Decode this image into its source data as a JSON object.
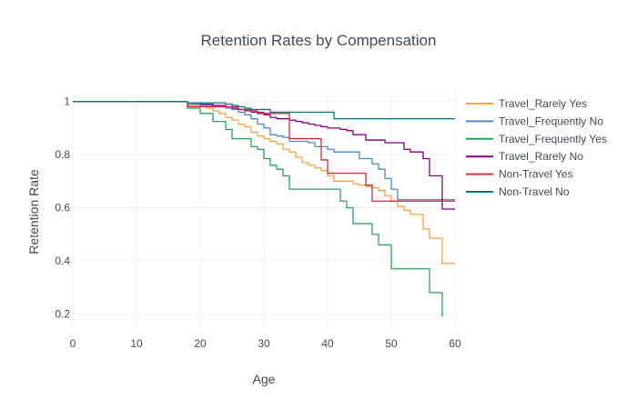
{
  "chart_data": {
    "type": "line",
    "title": "Retention Rates by Compensation",
    "xlabel": "Age",
    "ylabel": "Retention Rate",
    "xlim": [
      0,
      60
    ],
    "ylim": [
      0.15,
      1.04
    ],
    "x_ticks": [
      0,
      10,
      20,
      30,
      40,
      50,
      60
    ],
    "y_ticks": [
      0.2,
      0.4,
      0.6,
      0.8,
      1
    ],
    "y_tick_labels": [
      "0.2",
      "0.4",
      "0.6",
      "0.8",
      "1"
    ],
    "grid": true,
    "step": true,
    "legend_position": "right",
    "series": [
      {
        "name": "Travel_Rarely Yes",
        "color": "#f5a142",
        "x": [
          0,
          18,
          20,
          21,
          22,
          23,
          24,
          25,
          26,
          27,
          28,
          29,
          30,
          31,
          32,
          33,
          34,
          35,
          36,
          37,
          38,
          39,
          40,
          41,
          42,
          43,
          44,
          45,
          46,
          47,
          48,
          49,
          50,
          51,
          52,
          53,
          54,
          55,
          56,
          57,
          58,
          59,
          60
        ],
        "y": [
          1.0,
          0.985,
          0.98,
          0.975,
          0.965,
          0.955,
          0.94,
          0.93,
          0.915,
          0.905,
          0.885,
          0.87,
          0.86,
          0.85,
          0.84,
          0.82,
          0.81,
          0.79,
          0.77,
          0.76,
          0.75,
          0.74,
          0.72,
          0.7,
          0.7,
          0.7,
          0.69,
          0.685,
          0.68,
          0.675,
          0.665,
          0.645,
          0.625,
          0.605,
          0.59,
          0.575,
          0.575,
          0.52,
          0.485,
          0.485,
          0.39,
          0.39,
          0.39
        ]
      },
      {
        "name": "Travel_Frequently No",
        "color": "#4a89c8",
        "x": [
          0,
          18,
          20,
          22,
          24,
          25,
          26,
          27,
          28,
          29,
          30,
          31,
          32,
          33,
          34,
          35,
          36,
          37,
          38,
          39,
          40,
          41,
          42,
          43,
          44,
          45,
          46,
          47,
          48,
          49,
          50,
          51,
          52,
          53,
          54,
          55,
          56,
          57,
          58,
          59,
          60
        ],
        "y": [
          1.0,
          0.99,
          0.985,
          0.98,
          0.975,
          0.97,
          0.96,
          0.95,
          0.935,
          0.915,
          0.9,
          0.875,
          0.87,
          0.865,
          0.85,
          0.85,
          0.85,
          0.845,
          0.83,
          0.83,
          0.82,
          0.81,
          0.81,
          0.81,
          0.81,
          0.785,
          0.785,
          0.765,
          0.745,
          0.71,
          0.67,
          0.63,
          0.63,
          0.63,
          0.63,
          0.63,
          0.63,
          0.63,
          0.63,
          0.63,
          0.63
        ]
      },
      {
        "name": "Travel_Frequently Yes",
        "color": "#2ca25f",
        "x": [
          0,
          18,
          20,
          22,
          24,
          25,
          26,
          27,
          28,
          29,
          30,
          31,
          32,
          33,
          34,
          35,
          36,
          37,
          38,
          39,
          40,
          41,
          42,
          43,
          44,
          45,
          46,
          47,
          48,
          49,
          50,
          51,
          52,
          53,
          54,
          55,
          56,
          57,
          58
        ],
        "y": [
          1.0,
          0.975,
          0.955,
          0.925,
          0.895,
          0.86,
          0.86,
          0.86,
          0.83,
          0.82,
          0.785,
          0.76,
          0.745,
          0.72,
          0.67,
          0.67,
          0.67,
          0.67,
          0.67,
          0.67,
          0.67,
          0.67,
          0.625,
          0.6,
          0.54,
          0.54,
          0.54,
          0.5,
          0.46,
          0.46,
          0.37,
          0.37,
          0.37,
          0.37,
          0.37,
          0.37,
          0.28,
          0.28,
          0.19
        ]
      },
      {
        "name": "Travel_Rarely No",
        "color": "#800080",
        "x": [
          0,
          18,
          20,
          22,
          24,
          25,
          26,
          27,
          28,
          29,
          30,
          31,
          32,
          33,
          34,
          35,
          36,
          37,
          38,
          39,
          40,
          41,
          42,
          43,
          44,
          45,
          46,
          47,
          48,
          49,
          50,
          51,
          52,
          53,
          54,
          55,
          56,
          57,
          58,
          59,
          60
        ],
        "y": [
          1.0,
          0.995,
          0.99,
          0.985,
          0.98,
          0.975,
          0.97,
          0.965,
          0.96,
          0.955,
          0.95,
          0.94,
          0.935,
          0.935,
          0.93,
          0.925,
          0.92,
          0.915,
          0.91,
          0.905,
          0.9,
          0.9,
          0.895,
          0.89,
          0.875,
          0.875,
          0.855,
          0.855,
          0.855,
          0.845,
          0.845,
          0.845,
          0.82,
          0.81,
          0.81,
          0.785,
          0.72,
          0.72,
          0.595,
          0.595,
          0.595
        ]
      },
      {
        "name": "Non-Travel Yes",
        "color": "#d62a40",
        "x": [
          0,
          18,
          26,
          27,
          28,
          29,
          30,
          31,
          32,
          33,
          34,
          35,
          36,
          37,
          38,
          39,
          40,
          41,
          42,
          43,
          44,
          45,
          46,
          47,
          48,
          49,
          50,
          51,
          52,
          53,
          54,
          55,
          56,
          57,
          58,
          59,
          60
        ],
        "y": [
          1.0,
          0.98,
          0.97,
          0.97,
          0.965,
          0.96,
          0.955,
          0.955,
          0.955,
          0.955,
          0.86,
          0.86,
          0.86,
          0.86,
          0.86,
          0.78,
          0.73,
          0.73,
          0.73,
          0.73,
          0.73,
          0.73,
          0.685,
          0.625,
          0.625,
          0.625,
          0.625,
          0.625,
          0.625,
          0.625,
          0.625,
          0.625,
          0.625,
          0.625,
          0.625,
          0.625,
          0.625
        ]
      },
      {
        "name": "Non-Travel No",
        "color": "#0f7a85",
        "x": [
          0,
          18,
          24,
          25,
          26,
          27,
          28,
          29,
          30,
          31,
          32,
          33,
          34,
          35,
          36,
          37,
          38,
          39,
          40,
          41,
          42,
          43,
          44,
          45,
          46,
          47,
          48,
          49,
          50,
          51,
          52,
          53,
          54,
          55,
          56,
          57,
          58,
          59,
          60
        ],
        "y": [
          1.0,
          0.995,
          0.99,
          0.985,
          0.98,
          0.975,
          0.97,
          0.97,
          0.97,
          0.96,
          0.96,
          0.96,
          0.96,
          0.96,
          0.96,
          0.96,
          0.96,
          0.96,
          0.96,
          0.935,
          0.935,
          0.935,
          0.935,
          0.935,
          0.935,
          0.935,
          0.935,
          0.935,
          0.935,
          0.935,
          0.935,
          0.935,
          0.935,
          0.935,
          0.935,
          0.935,
          0.935,
          0.935,
          0.935
        ]
      }
    ]
  }
}
